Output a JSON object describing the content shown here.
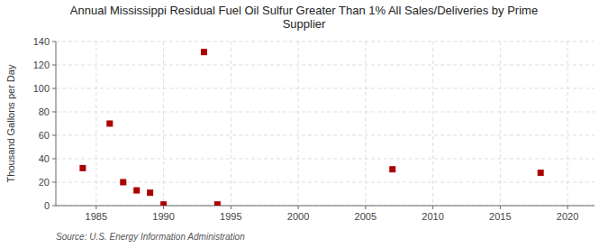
{
  "chart_data": {
    "type": "scatter",
    "title": "Annual Mississippi Residual Fuel Oil Sulfur Greater Than 1% All Sales/Deliveries by Prime\nSupplier",
    "ylabel": "Thousand Gallons per Day",
    "source": "Source: U.S. Energy Information Administration",
    "x": [
      1984,
      1986,
      1987,
      1988,
      1989,
      1990,
      1993,
      1994,
      2007,
      2018
    ],
    "values": [
      32,
      70,
      20,
      13,
      11,
      1,
      131,
      1,
      31,
      28
    ],
    "color": "#aa0000",
    "marker": "square",
    "xlim": [
      1982,
      2022
    ],
    "ylim": [
      0,
      140
    ],
    "xticks": [
      1985,
      1990,
      1995,
      2000,
      2005,
      2010,
      2015,
      2020
    ],
    "yticks": [
      0,
      20,
      40,
      60,
      80,
      100,
      120,
      140
    ],
    "grid": true
  }
}
